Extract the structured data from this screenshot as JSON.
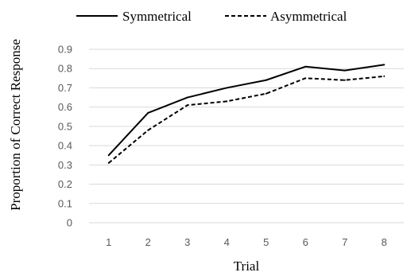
{
  "chart_data": {
    "type": "line",
    "title": "",
    "xlabel": "Trial",
    "ylabel": "Proportion of Correct Response",
    "categories": [
      "1",
      "2",
      "3",
      "4",
      "5",
      "6",
      "7",
      "8"
    ],
    "ylim": [
      0,
      0.9
    ],
    "yticks": [
      "0",
      "0.1",
      "0.2",
      "0.3",
      "0.4",
      "0.5",
      "0.6",
      "0.7",
      "0.8",
      "0.9"
    ],
    "grid": true,
    "legend_position": "top",
    "series": [
      {
        "name": "Symmetrical",
        "line_style": "solid",
        "color": "#000000",
        "values": [
          0.35,
          0.57,
          0.65,
          0.7,
          0.74,
          0.81,
          0.79,
          0.82
        ]
      },
      {
        "name": "Asymmetrical",
        "line_style": "dashed",
        "color": "#000000",
        "values": [
          0.31,
          0.48,
          0.61,
          0.63,
          0.67,
          0.75,
          0.74,
          0.76
        ]
      }
    ]
  }
}
